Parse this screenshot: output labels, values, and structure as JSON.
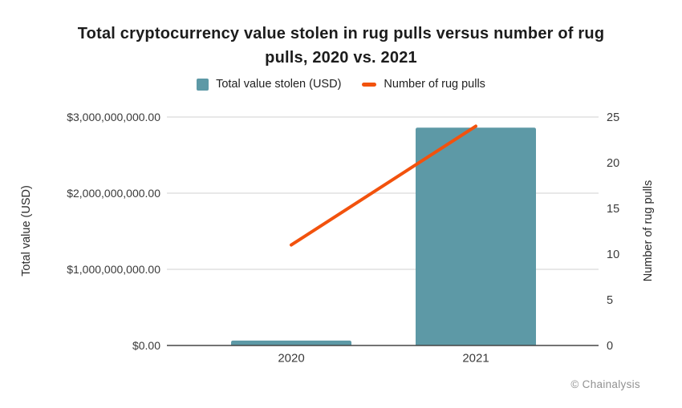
{
  "chart_data": {
    "type": "combo-bar-line",
    "title": "Total cryptocurrency value stolen in rug pulls versus number of rug pulls, 2020 vs. 2021",
    "title_lines": [
      "Total cryptocurrency value stolen in rug pulls versus number of rug",
      "pulls, 2020 vs. 2021"
    ],
    "categories": [
      "2020",
      "2021"
    ],
    "series": [
      {
        "name": "Total value stolen (USD)",
        "type": "bar",
        "axis": "left",
        "color": "#5d99a6",
        "values": [
          65000000,
          2860000000
        ]
      },
      {
        "name": "Number of rug pulls",
        "type": "line",
        "axis": "right",
        "color": "#f2520d",
        "values": [
          11,
          24
        ]
      }
    ],
    "left_axis": {
      "label": "Total value (USD)",
      "tick_values": [
        0,
        1000000000,
        2000000000,
        3000000000
      ],
      "tick_labels": [
        "$0.00",
        "$1,000,000,000.00",
        "$2,000,000,000.00",
        "$3,000,000,000.00"
      ],
      "range": [
        0,
        3000000000
      ]
    },
    "right_axis": {
      "label": "Number of rug pulls",
      "tick_values": [
        0,
        5,
        10,
        15,
        20,
        25
      ],
      "tick_labels": [
        "0",
        "5",
        "10",
        "15",
        "20",
        "25"
      ],
      "range": [
        0,
        25
      ]
    },
    "grid": "horizontal",
    "legend_position": "top",
    "source": "© Chainalysis",
    "colors": {
      "grid": "#d9d9d9",
      "baseline": "#454545",
      "tick_text": "#3a3a3a",
      "axis_title_text": "#2b2b2b",
      "title_text": "#1c1c1c",
      "source_text": "#919191"
    }
  }
}
